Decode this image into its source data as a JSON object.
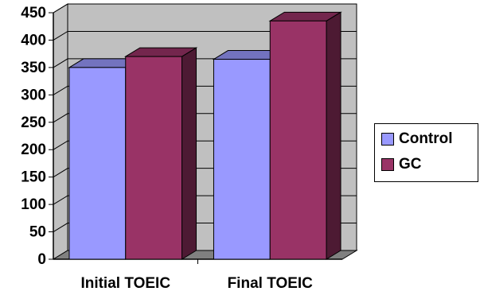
{
  "chart_data": {
    "type": "bar",
    "categories": [
      "Initial TOEIC",
      "Final TOEIC"
    ],
    "series": [
      {
        "name": "Control",
        "values": [
          350,
          365
        ],
        "color": "#9999ff"
      },
      {
        "name": "GC",
        "values": [
          370,
          435
        ],
        "color": "#993366"
      }
    ],
    "ylim": [
      0,
      450
    ],
    "yticks": [
      "0",
      "50",
      "100",
      "150",
      "200",
      "250",
      "300",
      "350",
      "400",
      "450"
    ],
    "title": "",
    "xlabel": "",
    "ylabel": "",
    "grid": true,
    "legend_position": "right",
    "style": "3d-clustered-column",
    "wall_color": "#c0c0c0",
    "floor_color": "#808080"
  }
}
